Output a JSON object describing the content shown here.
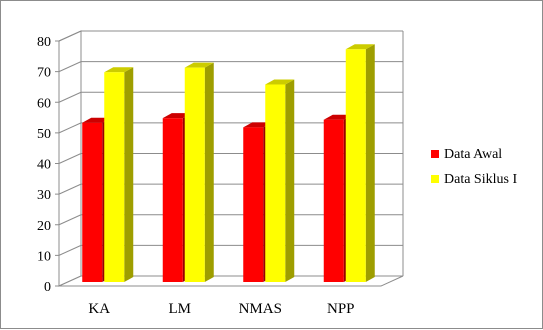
{
  "chart_data": {
    "type": "bar",
    "categories": [
      "KA",
      "LM",
      "NMAS",
      "NPP"
    ],
    "series": [
      {
        "name": "Data Awal",
        "values": [
          52,
          53.5,
          50.5,
          53
        ],
        "color": "#ff0000",
        "side_color": "#990000",
        "top_color": "#cc0000"
      },
      {
        "name": "Data Siklus I",
        "values": [
          68.5,
          70,
          64.5,
          76
        ],
        "color": "#ffff00",
        "side_color": "#9e9e00",
        "top_color": "#cccc00"
      }
    ],
    "ylim": [
      0,
      80
    ],
    "yticks": [
      0,
      10,
      20,
      30,
      40,
      50,
      60,
      70,
      80
    ],
    "grid": true,
    "legend_position": "right",
    "three_d": true
  }
}
